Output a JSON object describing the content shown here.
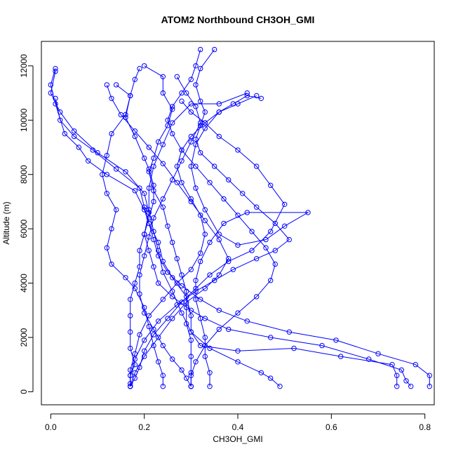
{
  "chart_data": {
    "type": "line",
    "title": "ATOM2 Northbound CH3OH_GMI",
    "xlabel": "CH3OH_GMI",
    "ylabel": "Altitude (m)",
    "xlim": [
      -0.02,
      0.82
    ],
    "ylim": [
      -480,
      12900
    ],
    "x_ticks": [
      0.0,
      0.2,
      0.4,
      0.6,
      0.8
    ],
    "x_tick_labels": [
      "0.0",
      "0.2",
      "0.4",
      "0.6",
      "0.8"
    ],
    "y_ticks": [
      0,
      2000,
      4000,
      6000,
      8000,
      10000,
      12000
    ],
    "y_tick_labels": [
      "0",
      "2000",
      "4000",
      "6000",
      "8000",
      "10000",
      "12000"
    ],
    "grid": false,
    "legend": "none",
    "colors": {
      "series": "#0000ff",
      "axis": "#000000",
      "background": "#ffffff"
    },
    "marker": "open-circle",
    "series": [
      {
        "values": [
          [
            0.17,
            200
          ],
          [
            0.17,
            600
          ],
          [
            0.18,
            1000
          ],
          [
            0.17,
            1600
          ],
          [
            0.17,
            2200
          ],
          [
            0.17,
            2800
          ],
          [
            0.17,
            3400
          ],
          [
            0.18,
            4000
          ],
          [
            0.19,
            4600
          ],
          [
            0.19,
            5200
          ],
          [
            0.2,
            5800
          ],
          [
            0.21,
            6400
          ],
          [
            0.22,
            7000
          ],
          [
            0.22,
            7600
          ],
          [
            0.21,
            8200
          ],
          [
            0.2,
            8600
          ],
          [
            0.18,
            9400
          ],
          [
            0.16,
            10100
          ],
          [
            0.17,
            10900
          ],
          [
            0.14,
            11300
          ]
        ]
      },
      {
        "values": [
          [
            0.3,
            200
          ],
          [
            0.3,
            700
          ],
          [
            0.3,
            1300
          ],
          [
            0.3,
            1900
          ],
          [
            0.29,
            2500
          ],
          [
            0.29,
            3100
          ],
          [
            0.29,
            3700
          ],
          [
            0.28,
            4300
          ],
          [
            0.27,
            4900
          ],
          [
            0.26,
            5500
          ],
          [
            0.25,
            6100
          ],
          [
            0.24,
            6800
          ],
          [
            0.22,
            7400
          ],
          [
            0.21,
            8100
          ],
          [
            0.22,
            8600
          ],
          [
            0.23,
            9200
          ],
          [
            0.25,
            9800
          ],
          [
            0.26,
            10400
          ],
          [
            0.24,
            11000
          ],
          [
            0.24,
            11600
          ],
          [
            0.2,
            12000
          ]
        ]
      },
      {
        "values": [
          [
            0.74,
            200
          ],
          [
            0.74,
            600
          ],
          [
            0.73,
            1000
          ],
          [
            0.62,
            1300
          ],
          [
            0.52,
            1600
          ],
          [
            0.4,
            1500
          ],
          [
            0.32,
            1700
          ],
          [
            0.3,
            2200
          ],
          [
            0.3,
            2800
          ],
          [
            0.29,
            3500
          ],
          [
            0.26,
            4200
          ],
          [
            0.24,
            4800
          ],
          [
            0.23,
            5500
          ],
          [
            0.21,
            6200
          ],
          [
            0.2,
            6700
          ],
          [
            0.18,
            7400
          ],
          [
            0.12,
            8000
          ],
          [
            0.08,
            8500
          ],
          [
            0.06,
            9000
          ],
          [
            0.03,
            9500
          ],
          [
            0.01,
            10600
          ],
          [
            0.0,
            11300
          ],
          [
            0.01,
            11900
          ]
        ]
      },
      {
        "values": [
          [
            0.77,
            200
          ],
          [
            0.76,
            400
          ],
          [
            0.75,
            800
          ],
          [
            0.68,
            1200
          ],
          [
            0.58,
            1700
          ],
          [
            0.47,
            2000
          ],
          [
            0.38,
            2300
          ],
          [
            0.33,
            2700
          ],
          [
            0.3,
            3000
          ],
          [
            0.26,
            3500
          ],
          [
            0.23,
            4000
          ],
          [
            0.22,
            4600
          ],
          [
            0.21,
            5200
          ],
          [
            0.2,
            5800
          ],
          [
            0.21,
            6600
          ],
          [
            0.2,
            7300
          ],
          [
            0.16,
            8100
          ],
          [
            0.1,
            8800
          ],
          [
            0.05,
            9600
          ],
          [
            0.02,
            10300
          ],
          [
            0.0,
            11000
          ],
          [
            0.01,
            11800
          ]
        ]
      },
      {
        "values": [
          [
            0.81,
            200
          ],
          [
            0.81,
            600
          ],
          [
            0.78,
            1000
          ],
          [
            0.7,
            1400
          ],
          [
            0.61,
            1900
          ],
          [
            0.51,
            2200
          ],
          [
            0.42,
            2600
          ],
          [
            0.36,
            3000
          ],
          [
            0.32,
            3400
          ],
          [
            0.28,
            3900
          ],
          [
            0.25,
            4400
          ],
          [
            0.23,
            5000
          ],
          [
            0.22,
            5600
          ],
          [
            0.21,
            6200
          ],
          [
            0.2,
            6800
          ],
          [
            0.19,
            7500
          ],
          [
            0.14,
            8200
          ],
          [
            0.09,
            8900
          ],
          [
            0.05,
            9400
          ],
          [
            0.02,
            10000
          ],
          [
            0.01,
            10800
          ]
        ]
      },
      {
        "values": [
          [
            0.49,
            200
          ],
          [
            0.47,
            500
          ],
          [
            0.45,
            700
          ],
          [
            0.4,
            1100
          ],
          [
            0.34,
            1600
          ],
          [
            0.3,
            2200
          ],
          [
            0.28,
            2900
          ],
          [
            0.26,
            3700
          ],
          [
            0.24,
            4400
          ],
          [
            0.23,
            5200
          ],
          [
            0.22,
            5900
          ],
          [
            0.21,
            6700
          ],
          [
            0.21,
            7500
          ],
          [
            0.22,
            8300
          ],
          [
            0.24,
            9100
          ],
          [
            0.26,
            9900
          ],
          [
            0.3,
            10600
          ],
          [
            0.36,
            10600
          ],
          [
            0.42,
            11000
          ]
        ]
      },
      {
        "values": [
          [
            0.24,
            200
          ],
          [
            0.24,
            600
          ],
          [
            0.23,
            1100
          ],
          [
            0.22,
            1700
          ],
          [
            0.21,
            2400
          ],
          [
            0.2,
            3100
          ],
          [
            0.18,
            3800
          ],
          [
            0.16,
            4200
          ],
          [
            0.13,
            4700
          ],
          [
            0.12,
            5300
          ],
          [
            0.13,
            6000
          ],
          [
            0.14,
            6700
          ],
          [
            0.12,
            7300
          ],
          [
            0.11,
            8000
          ],
          [
            0.12,
            8700
          ],
          [
            0.13,
            9500
          ],
          [
            0.16,
            10200
          ],
          [
            0.17,
            10900
          ],
          [
            0.18,
            11500
          ],
          [
            0.19,
            11900
          ]
        ]
      },
      {
        "values": [
          [
            0.34,
            200
          ],
          [
            0.34,
            700
          ],
          [
            0.33,
            1300
          ],
          [
            0.33,
            2000
          ],
          [
            0.32,
            2700
          ],
          [
            0.31,
            3400
          ],
          [
            0.31,
            4100
          ],
          [
            0.32,
            4800
          ],
          [
            0.34,
            5500
          ],
          [
            0.37,
            6200
          ],
          [
            0.42,
            6600
          ],
          [
            0.55,
            6600
          ],
          [
            0.5,
            6100
          ],
          [
            0.46,
            5600
          ],
          [
            0.4,
            5400
          ],
          [
            0.36,
            5800
          ],
          [
            0.33,
            6700
          ],
          [
            0.31,
            7500
          ],
          [
            0.3,
            8300
          ],
          [
            0.31,
            9100
          ],
          [
            0.33,
            9700
          ],
          [
            0.36,
            10300
          ],
          [
            0.4,
            10600
          ],
          [
            0.44,
            10900
          ]
        ]
      },
      {
        "values": [
          [
            0.17,
            200
          ],
          [
            0.18,
            500
          ],
          [
            0.19,
            900
          ],
          [
            0.2,
            1500
          ],
          [
            0.22,
            2100
          ],
          [
            0.25,
            2700
          ],
          [
            0.28,
            3300
          ],
          [
            0.31,
            3800
          ],
          [
            0.34,
            4300
          ],
          [
            0.38,
            4800
          ],
          [
            0.43,
            5200
          ],
          [
            0.47,
            5900
          ],
          [
            0.5,
            6900
          ],
          [
            0.47,
            7600
          ],
          [
            0.44,
            8300
          ],
          [
            0.4,
            8900
          ],
          [
            0.36,
            9400
          ],
          [
            0.33,
            9900
          ],
          [
            0.3,
            10300
          ],
          [
            0.28,
            10700
          ]
        ]
      },
      {
        "values": [
          [
            0.17,
            300
          ],
          [
            0.17,
            800
          ],
          [
            0.18,
            1400
          ],
          [
            0.19,
            2100
          ],
          [
            0.21,
            2800
          ],
          [
            0.24,
            3400
          ],
          [
            0.27,
            4000
          ],
          [
            0.3,
            4500
          ],
          [
            0.32,
            5100
          ],
          [
            0.33,
            5800
          ],
          [
            0.32,
            6500
          ],
          [
            0.3,
            7100
          ],
          [
            0.28,
            7700
          ],
          [
            0.27,
            8300
          ],
          [
            0.28,
            8900
          ],
          [
            0.3,
            9400
          ],
          [
            0.33,
            9900
          ],
          [
            0.36,
            10300
          ],
          [
            0.39,
            10600
          ],
          [
            0.42,
            10900
          ],
          [
            0.45,
            10800
          ]
        ]
      },
      {
        "values": [
          [
            0.3,
            200
          ],
          [
            0.29,
            500
          ],
          [
            0.28,
            800
          ],
          [
            0.26,
            1200
          ],
          [
            0.24,
            1700
          ],
          [
            0.22,
            2300
          ],
          [
            0.2,
            2900
          ],
          [
            0.19,
            3600
          ],
          [
            0.19,
            4300
          ],
          [
            0.2,
            5000
          ],
          [
            0.21,
            5700
          ],
          [
            0.22,
            6400
          ],
          [
            0.24,
            7100
          ],
          [
            0.26,
            7800
          ],
          [
            0.28,
            8500
          ],
          [
            0.3,
            9200
          ],
          [
            0.32,
            9900
          ],
          [
            0.31,
            10500
          ],
          [
            0.29,
            11000
          ],
          [
            0.27,
            11600
          ]
        ]
      },
      {
        "values": [
          [
            0.17,
            200
          ],
          [
            0.18,
            700
          ],
          [
            0.2,
            1300
          ],
          [
            0.23,
            2000
          ],
          [
            0.26,
            2700
          ],
          [
            0.29,
            3300
          ],
          [
            0.33,
            3800
          ],
          [
            0.36,
            4300
          ],
          [
            0.38,
            4900
          ],
          [
            0.36,
            5600
          ],
          [
            0.33,
            6300
          ],
          [
            0.3,
            7000
          ],
          [
            0.27,
            7700
          ],
          [
            0.24,
            8400
          ],
          [
            0.21,
            9000
          ],
          [
            0.18,
            9600
          ],
          [
            0.15,
            10200
          ],
          [
            0.13,
            10800
          ],
          [
            0.12,
            11300
          ]
        ]
      },
      {
        "values": [
          [
            0.17,
            200
          ],
          [
            0.17,
            600
          ],
          [
            0.18,
            1200
          ],
          [
            0.2,
            1900
          ],
          [
            0.23,
            2600
          ],
          [
            0.27,
            3200
          ],
          [
            0.31,
            3700
          ],
          [
            0.35,
            4100
          ],
          [
            0.39,
            4500
          ],
          [
            0.44,
            4900
          ],
          [
            0.48,
            5200
          ],
          [
            0.51,
            5600
          ],
          [
            0.48,
            6200
          ],
          [
            0.44,
            6800
          ],
          [
            0.41,
            7300
          ],
          [
            0.38,
            7800
          ],
          [
            0.35,
            8300
          ],
          [
            0.32,
            8800
          ],
          [
            0.31,
            9300
          ],
          [
            0.32,
            9800
          ],
          [
            0.33,
            10300
          ],
          [
            0.32,
            10700
          ],
          [
            0.31,
            11300
          ],
          [
            0.32,
            11900
          ],
          [
            0.35,
            12600
          ]
        ]
      },
      {
        "values": [
          [
            0.3,
            200
          ],
          [
            0.3,
            600
          ],
          [
            0.31,
            1100
          ],
          [
            0.33,
            1700
          ],
          [
            0.36,
            2300
          ],
          [
            0.4,
            2900
          ],
          [
            0.44,
            3500
          ],
          [
            0.47,
            4100
          ],
          [
            0.48,
            4700
          ],
          [
            0.46,
            5300
          ],
          [
            0.43,
            5900
          ],
          [
            0.4,
            6500
          ],
          [
            0.37,
            7100
          ],
          [
            0.34,
            7700
          ],
          [
            0.31,
            8300
          ],
          [
            0.28,
            8900
          ],
          [
            0.26,
            9500
          ],
          [
            0.25,
            10000
          ],
          [
            0.26,
            10500
          ],
          [
            0.28,
            11000
          ],
          [
            0.3,
            11500
          ],
          [
            0.31,
            12000
          ],
          [
            0.32,
            12600
          ]
        ]
      }
    ]
  }
}
